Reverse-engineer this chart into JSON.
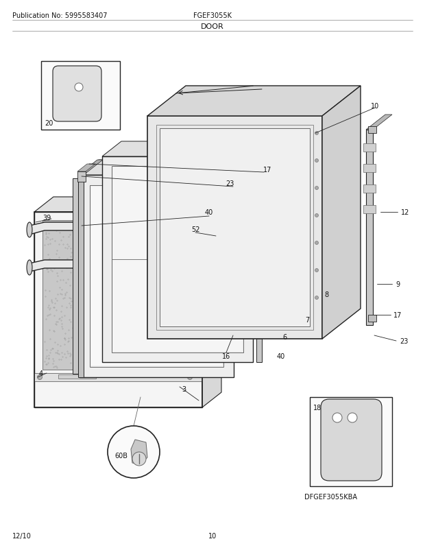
{
  "title": "DOOR",
  "pub_no": "Publication No: 5995583407",
  "model": "FGEF3055K",
  "footer_left": "12/10",
  "footer_center": "10",
  "bg_color": "#ffffff",
  "text_color": "#000000",
  "figsize": [
    6.2,
    8.03
  ],
  "dpi": 100,
  "lc": "#222222",
  "mc": "#666666",
  "fc_light": "#f0f0f0",
  "fc_mid": "#d8d8d8",
  "fc_dark": "#b0b0b0"
}
